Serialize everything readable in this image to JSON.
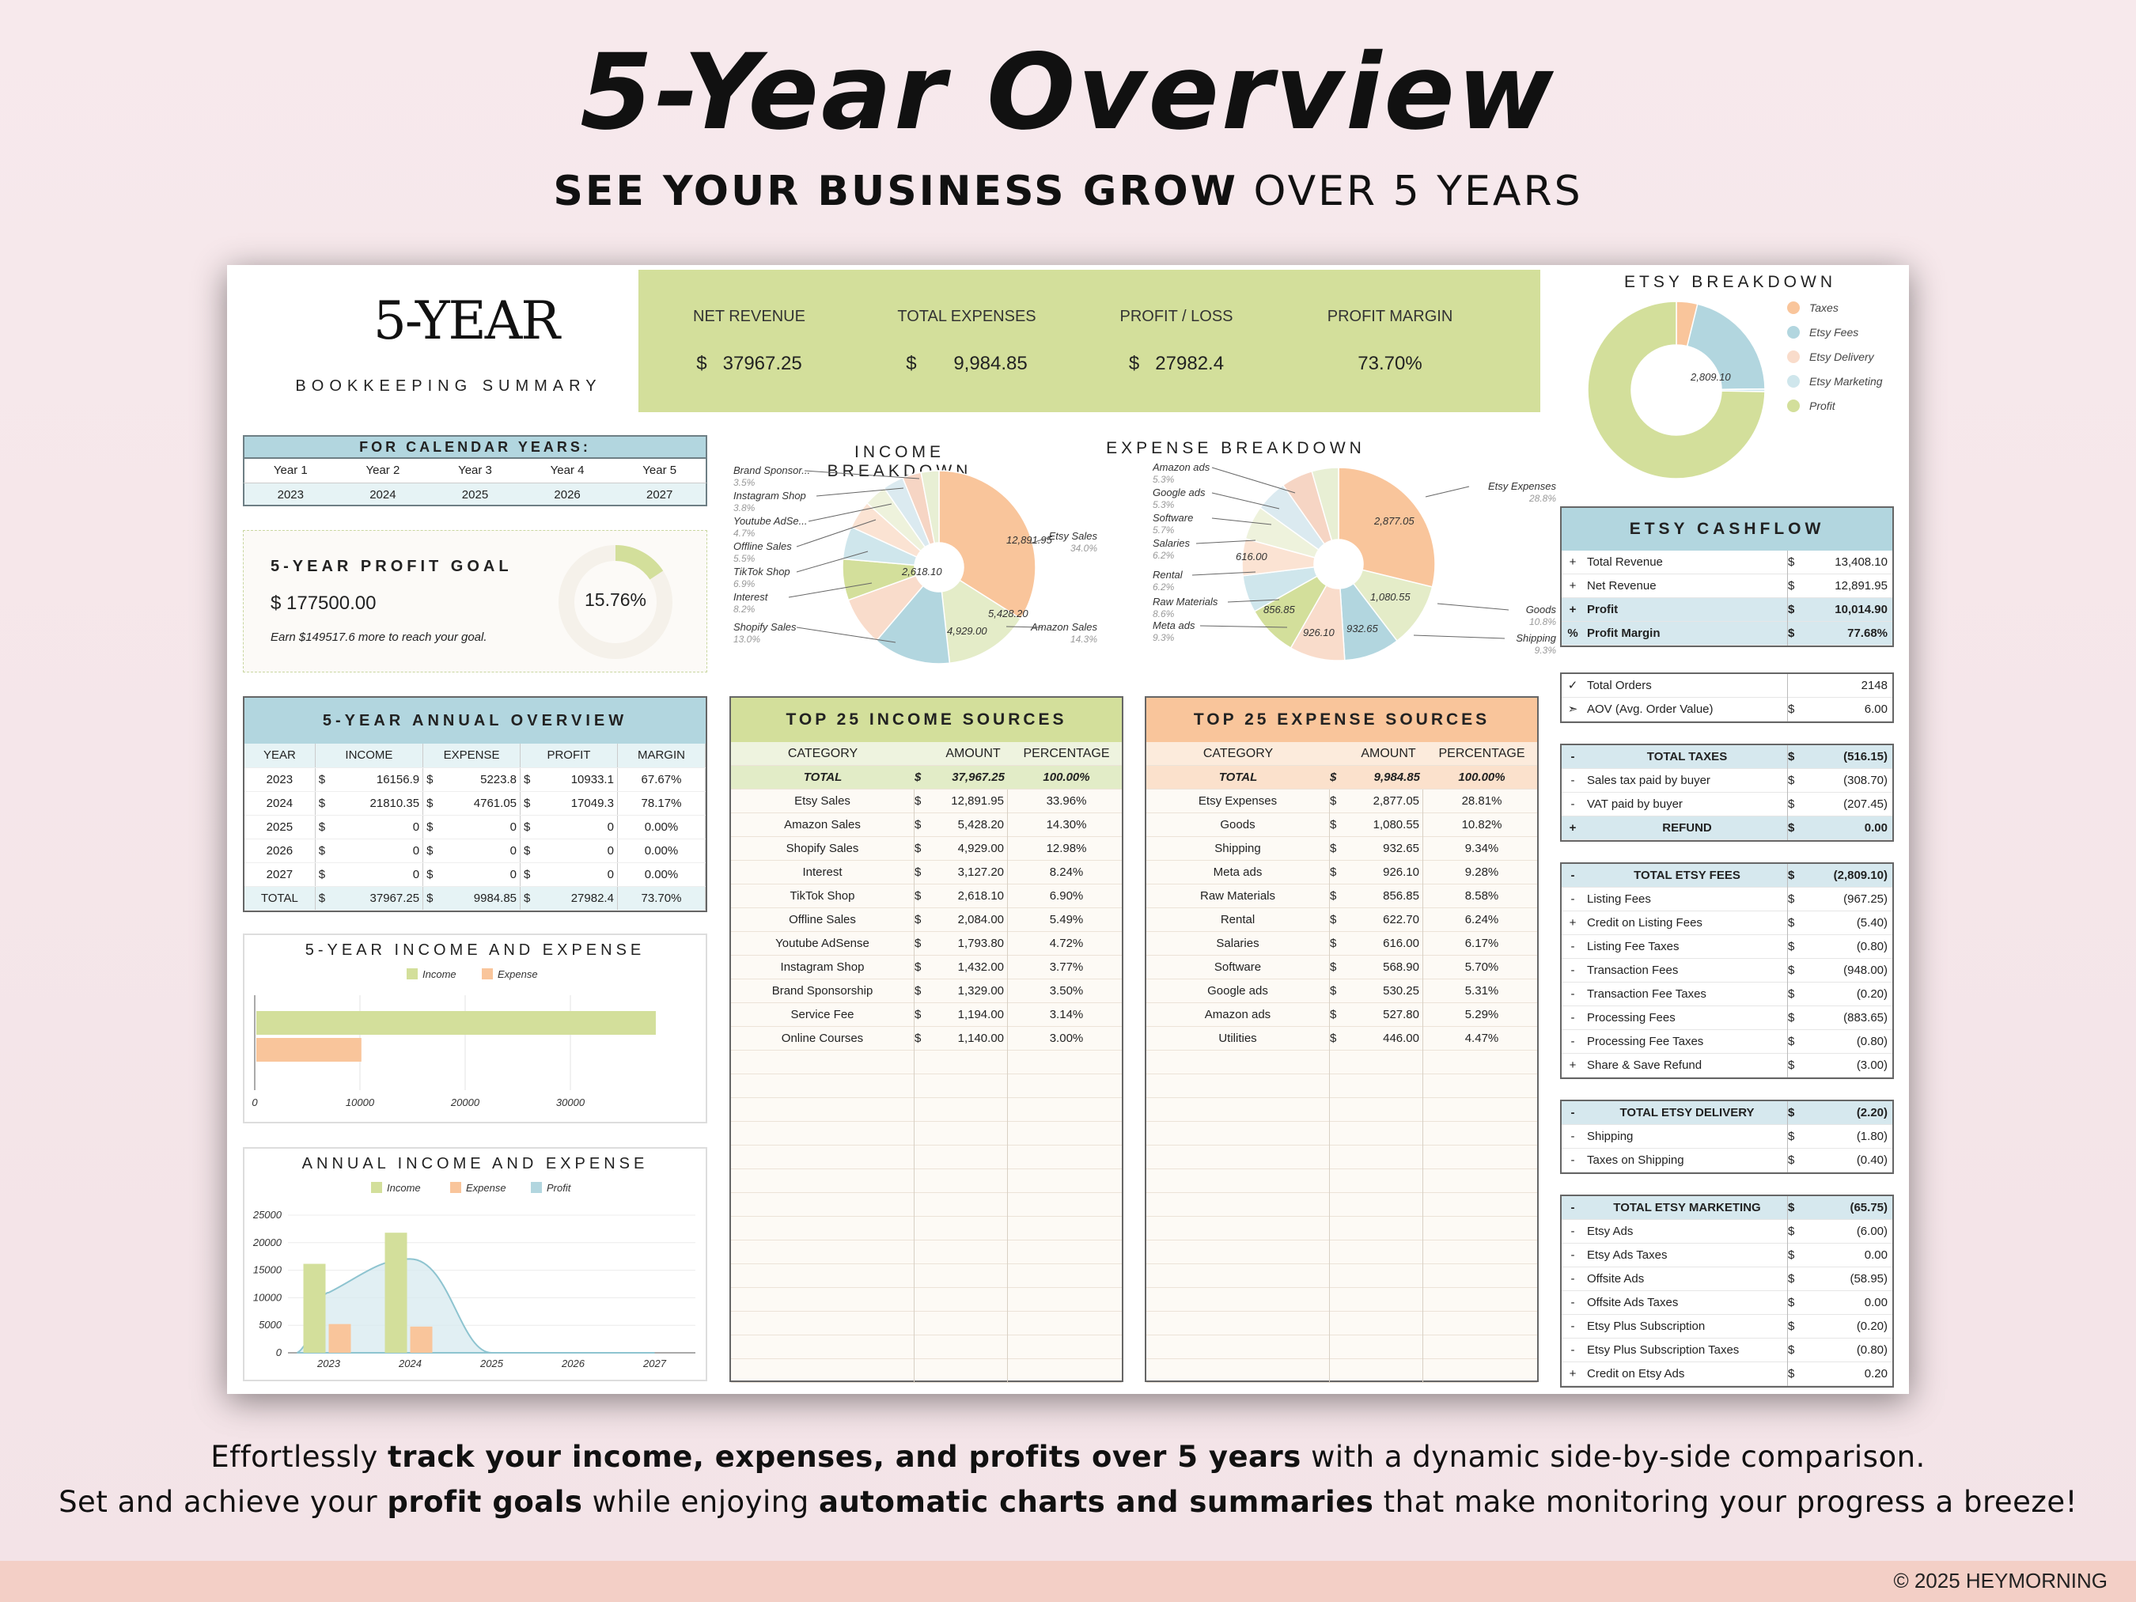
{
  "header": {
    "title": "5-Year Overview",
    "subtitle_bold": "SEE YOUR BUSINESS GROW",
    "subtitle_rest": " OVER 5 YEARS"
  },
  "summary": {
    "title": "5-YEAR",
    "subtitle": "BOOKKEEPING SUMMARY"
  },
  "kpis": [
    {
      "label": "NET REVENUE",
      "currency": "$",
      "value": "37967.25"
    },
    {
      "label": "TOTAL EXPENSES",
      "currency": "$",
      "value": "9,984.85"
    },
    {
      "label": "PROFIT / LOSS",
      "currency": "$",
      "value": "27982.4"
    },
    {
      "label": "PROFIT MARGIN",
      "currency": "",
      "value": "73.70%"
    }
  ],
  "calendar": {
    "title": "FOR CALENDAR YEARS:",
    "labels": [
      "Year 1",
      "Year 2",
      "Year 3",
      "Year 4",
      "Year 5"
    ],
    "years": [
      "2023",
      "2024",
      "2025",
      "2026",
      "2027"
    ]
  },
  "goal": {
    "title": "5-YEAR PROFIT GOAL",
    "amount": "$ 177500.00",
    "note": "Earn $149517.6 more to reach your goal.",
    "percent": "15.76%",
    "fraction": 0.1576
  },
  "annual": {
    "title": "5-YEAR ANNUAL OVERVIEW",
    "headers": [
      "YEAR",
      "INCOME",
      "EXPENSE",
      "PROFIT",
      "MARGIN"
    ],
    "rows": [
      [
        "2023",
        "$",
        "16156.9",
        "$",
        "5223.8",
        "$",
        "10933.1",
        "67.67%"
      ],
      [
        "2024",
        "$",
        "21810.35",
        "$",
        "4761.05",
        "$",
        "17049.3",
        "78.17%"
      ],
      [
        "2025",
        "$",
        "0",
        "$",
        "0",
        "$",
        "0",
        "0.00%"
      ],
      [
        "2026",
        "$",
        "0",
        "$",
        "0",
        "$",
        "0",
        "0.00%"
      ],
      [
        "2027",
        "$",
        "0",
        "$",
        "0",
        "$",
        "0",
        "0.00%"
      ],
      [
        "TOTAL",
        "$",
        "37967.25",
        "$",
        "9984.85",
        "$",
        "27982.4",
        "73.70%"
      ]
    ]
  },
  "income_breakdown": {
    "title": "INCOME BREAKDOWN",
    "labels": [
      {
        "name": "Brand Sponsor...",
        "pct": "3.5%"
      },
      {
        "name": "Instagram Shop",
        "pct": "3.8%"
      },
      {
        "name": "Youtube AdSe...",
        "pct": "4.7%"
      },
      {
        "name": "Offline Sales",
        "pct": "5.5%"
      },
      {
        "name": "TikTok Shop",
        "pct": "6.9%"
      },
      {
        "name": "Interest",
        "pct": "8.2%"
      },
      {
        "name": "Shopify Sales",
        "pct": "13.0%"
      },
      {
        "name": "Etsy Sales",
        "pct": "34.0%"
      },
      {
        "name": "Amazon Sales",
        "pct": "14.3%"
      }
    ],
    "slice_values": [
      "12,891.95",
      "5,428.20",
      "4,929.00",
      "2,618.10"
    ]
  },
  "expense_breakdown": {
    "title": "EXPENSE BREAKDOWN",
    "labels": [
      {
        "name": "Amazon ads",
        "pct": "5.3%"
      },
      {
        "name": "Google ads",
        "pct": "5.3%"
      },
      {
        "name": "Software",
        "pct": "5.7%"
      },
      {
        "name": "Salaries",
        "pct": "6.2%"
      },
      {
        "name": "Rental",
        "pct": "6.2%"
      },
      {
        "name": "Raw Materials",
        "pct": "8.6%"
      },
      {
        "name": "Meta ads",
        "pct": "9.3%"
      },
      {
        "name": "Etsy Expenses",
        "pct": "28.8%"
      },
      {
        "name": "Goods",
        "pct": "10.8%"
      },
      {
        "name": "Shipping",
        "pct": "9.3%"
      }
    ],
    "slice_values": [
      "2,877.05",
      "1,080.55",
      "616.00",
      "856.85",
      "926.10",
      "932.65"
    ]
  },
  "etsy_breakdown": {
    "title": "ETSY BREAKDOWN",
    "legend": [
      "Taxes",
      "Etsy Fees",
      "Etsy Delivery",
      "Etsy Marketing",
      "Profit"
    ],
    "center_value": "2,809.10"
  },
  "income_sources": {
    "title": "TOP 25 INCOME SOURCES",
    "headers": [
      "CATEGORY",
      "AMOUNT",
      "PERCENTAGE"
    ],
    "total": [
      "TOTAL",
      "$",
      "37,967.25",
      "100.00%"
    ],
    "rows": [
      [
        "Etsy Sales",
        "$",
        "12,891.95",
        "33.96%"
      ],
      [
        "Amazon Sales",
        "$",
        "5,428.20",
        "14.30%"
      ],
      [
        "Shopify Sales",
        "$",
        "4,929.00",
        "12.98%"
      ],
      [
        "Interest",
        "$",
        "3,127.20",
        "8.24%"
      ],
      [
        "TikTok Shop",
        "$",
        "2,618.10",
        "6.90%"
      ],
      [
        "Offline Sales",
        "$",
        "2,084.00",
        "5.49%"
      ],
      [
        "Youtube AdSense",
        "$",
        "1,793.80",
        "4.72%"
      ],
      [
        "Instagram Shop",
        "$",
        "1,432.00",
        "3.77%"
      ],
      [
        "Brand Sponsorship",
        "$",
        "1,329.00",
        "3.50%"
      ],
      [
        "Service Fee",
        "$",
        "1,194.00",
        "3.14%"
      ],
      [
        "Online Courses",
        "$",
        "1,140.00",
        "3.00%"
      ]
    ]
  },
  "expense_sources": {
    "title": "TOP 25 EXPENSE SOURCES",
    "headers": [
      "CATEGORY",
      "AMOUNT",
      "PERCENTAGE"
    ],
    "total": [
      "TOTAL",
      "$",
      "9,984.85",
      "100.00%"
    ],
    "rows": [
      [
        "Etsy Expenses",
        "$",
        "2,877.05",
        "28.81%"
      ],
      [
        "Goods",
        "$",
        "1,080.55",
        "10.82%"
      ],
      [
        "Shipping",
        "$",
        "932.65",
        "9.34%"
      ],
      [
        "Meta ads",
        "$",
        "926.10",
        "9.28%"
      ],
      [
        "Raw Materials",
        "$",
        "856.85",
        "8.58%"
      ],
      [
        "Rental",
        "$",
        "622.70",
        "6.24%"
      ],
      [
        "Salaries",
        "$",
        "616.00",
        "6.17%"
      ],
      [
        "Software",
        "$",
        "568.90",
        "5.70%"
      ],
      [
        "Google ads",
        "$",
        "530.25",
        "5.31%"
      ],
      [
        "Amazon ads",
        "$",
        "527.80",
        "5.29%"
      ],
      [
        "Utilities",
        "$",
        "446.00",
        "4.47%"
      ]
    ]
  },
  "cashflow": {
    "title": "ETSY CASHFLOW",
    "rows": [
      {
        "sym": "+",
        "label": "Total Revenue",
        "cur": "$",
        "amt": "13,408.10",
        "hl": false
      },
      {
        "sym": "+",
        "label": "Net Revenue",
        "cur": "$",
        "amt": "12,891.95",
        "hl": false
      },
      {
        "sym": "+",
        "label": "Profit",
        "cur": "$",
        "amt": "10,014.90",
        "hl": true
      },
      {
        "sym": "%",
        "label": "Profit Margin",
        "cur": "$",
        "amt": "77.68%",
        "hl": true
      }
    ]
  },
  "orders": {
    "rows": [
      {
        "sym": "✓",
        "label": "Total Orders",
        "cur": "",
        "amt": "2148"
      },
      {
        "sym": "➣",
        "label": "AOV (Avg. Order Value)",
        "cur": "$",
        "amt": "6.00"
      }
    ]
  },
  "taxes": {
    "rows": [
      {
        "sym": "-",
        "label": "TOTAL TAXES",
        "cur": "$",
        "amt": "(516.15)",
        "hl": true
      },
      {
        "sym": "-",
        "label": "Sales tax paid by buyer",
        "cur": "$",
        "amt": "(308.70)",
        "hl": false
      },
      {
        "sym": "-",
        "label": "VAT paid by buyer",
        "cur": "$",
        "amt": "(207.45)",
        "hl": false
      },
      {
        "sym": "+",
        "label": "REFUND",
        "cur": "$",
        "amt": "0.00",
        "hl": true
      }
    ]
  },
  "fees": {
    "rows": [
      {
        "sym": "-",
        "label": "TOTAL ETSY FEES",
        "cur": "$",
        "amt": "(2,809.10)",
        "hl": true
      },
      {
        "sym": "-",
        "label": "Listing Fees",
        "cur": "$",
        "amt": "(967.25)",
        "hl": false
      },
      {
        "sym": "+",
        "label": "Credit on Listing Fees",
        "cur": "$",
        "amt": "(5.40)",
        "hl": false
      },
      {
        "sym": "-",
        "label": "Listing Fee Taxes",
        "cur": "$",
        "amt": "(0.80)",
        "hl": false
      },
      {
        "sym": "-",
        "label": "Transaction Fees",
        "cur": "$",
        "amt": "(948.00)",
        "hl": false
      },
      {
        "sym": "-",
        "label": "Transaction Fee Taxes",
        "cur": "$",
        "amt": "(0.20)",
        "hl": false
      },
      {
        "sym": "-",
        "label": "Processing Fees",
        "cur": "$",
        "amt": "(883.65)",
        "hl": false
      },
      {
        "sym": "-",
        "label": "Processing Fee Taxes",
        "cur": "$",
        "amt": "(0.80)",
        "hl": false
      },
      {
        "sym": "+",
        "label": "Share & Save Refund",
        "cur": "$",
        "amt": "(3.00)",
        "hl": false
      }
    ]
  },
  "delivery": {
    "rows": [
      {
        "sym": "-",
        "label": "TOTAL ETSY DELIVERY",
        "cur": "$",
        "amt": "(2.20)",
        "hl": true
      },
      {
        "sym": "-",
        "label": "Shipping",
        "cur": "$",
        "amt": "(1.80)",
        "hl": false
      },
      {
        "sym": "-",
        "label": "Taxes on Shipping",
        "cur": "$",
        "amt": "(0.40)",
        "hl": false
      }
    ]
  },
  "marketing": {
    "rows": [
      {
        "sym": "-",
        "label": "TOTAL ETSY MARKETING",
        "cur": "$",
        "amt": "(65.75)",
        "hl": true
      },
      {
        "sym": "-",
        "label": "Etsy Ads",
        "cur": "$",
        "amt": "(6.00)",
        "hl": false
      },
      {
        "sym": "-",
        "label": "Etsy Ads Taxes",
        "cur": "$",
        "amt": "0.00",
        "hl": false
      },
      {
        "sym": "-",
        "label": "Offsite Ads",
        "cur": "$",
        "amt": "(58.95)",
        "hl": false
      },
      {
        "sym": "-",
        "label": "Offsite Ads Taxes",
        "cur": "$",
        "amt": "0.00",
        "hl": false
      },
      {
        "sym": "-",
        "label": "Etsy Plus Subscription",
        "cur": "$",
        "amt": "(0.20)",
        "hl": false
      },
      {
        "sym": "-",
        "label": "Etsy Plus Subscription Taxes",
        "cur": "$",
        "amt": "(0.80)",
        "hl": false
      },
      {
        "sym": "+",
        "label": "Credit on Etsy Ads",
        "cur": "$",
        "amt": "0.20",
        "hl": false
      }
    ]
  },
  "chart_data": [
    {
      "type": "bar",
      "title": "5-YEAR INCOME AND EXPENSE",
      "orientation": "horizontal",
      "categories": [
        "5-Year"
      ],
      "series": [
        {
          "name": "Income",
          "values": [
            37967.25
          ]
        },
        {
          "name": "Expense",
          "values": [
            9984.85
          ]
        }
      ],
      "ticks": [
        "0",
        "10000",
        "20000",
        "30000"
      ],
      "xlim": [
        0,
        40000
      ]
    },
    {
      "type": "bar",
      "title": "ANNUAL INCOME AND EXPENSE",
      "categories": [
        "2023",
        "2024",
        "2025",
        "2026",
        "2027"
      ],
      "series": [
        {
          "name": "Income",
          "values": [
            16156.9,
            21810.35,
            0,
            0,
            0
          ]
        },
        {
          "name": "Expense",
          "values": [
            5223.8,
            4761.05,
            0,
            0,
            0
          ]
        },
        {
          "name": "Profit",
          "values": [
            10933.1,
            17049.3,
            0,
            0,
            0
          ]
        }
      ],
      "ticks": [
        "25000",
        "20000",
        "15000",
        "10000",
        "5000",
        "0"
      ],
      "ylim": [
        0,
        25000
      ]
    },
    {
      "type": "pie",
      "title": "INCOME BREAKDOWN",
      "categories": [
        "Etsy Sales",
        "Amazon Sales",
        "Shopify Sales",
        "Interest",
        "TikTok Shop",
        "Offline Sales",
        "Youtube AdSense",
        "Instagram Shop",
        "Brand Sponsorship",
        "Service Fee",
        "Online Courses"
      ],
      "values": [
        12891.95,
        5428.2,
        4929.0,
        3127.2,
        2618.1,
        2084.0,
        1793.8,
        1432.0,
        1329.0,
        1194.0,
        1140.0
      ]
    },
    {
      "type": "pie",
      "title": "EXPENSE BREAKDOWN",
      "categories": [
        "Etsy Expenses",
        "Goods",
        "Shipping",
        "Meta ads",
        "Raw Materials",
        "Rental",
        "Salaries",
        "Software",
        "Google ads",
        "Amazon ads",
        "Utilities"
      ],
      "values": [
        2877.05,
        1080.55,
        932.65,
        926.1,
        856.85,
        622.7,
        616.0,
        568.9,
        530.25,
        527.8,
        446.0
      ]
    },
    {
      "type": "pie",
      "title": "ETSY BREAKDOWN",
      "categories": [
        "Taxes",
        "Etsy Fees",
        "Etsy Delivery",
        "Etsy Marketing",
        "Profit"
      ],
      "values": [
        516.15,
        2809.1,
        2.2,
        65.75,
        10014.9
      ]
    }
  ],
  "legend": {
    "income": "Income",
    "expense": "Expense",
    "profit": "Profit"
  },
  "colors": {
    "income": "#d3df9b",
    "expense": "#f9c59b",
    "profit": "#b2d6df",
    "delivery": "#f9dccb",
    "marketing": "#cfe6ec",
    "kpi_bg": "#d3df9b"
  },
  "footer": {
    "l1_a": "Effortlessly ",
    "l1_b": "track your income, expenses, and profits over 5 years",
    "l1_c": " with a dynamic side-by-side comparison.",
    "l2_a": "Set and achieve your ",
    "l2_b": "profit goals",
    "l2_c": " while enjoying ",
    "l2_d": "automatic charts and summaries",
    "l2_e": " that make monitoring your progress a breeze!",
    "copyright": "© 2025 HEYMORNING"
  }
}
